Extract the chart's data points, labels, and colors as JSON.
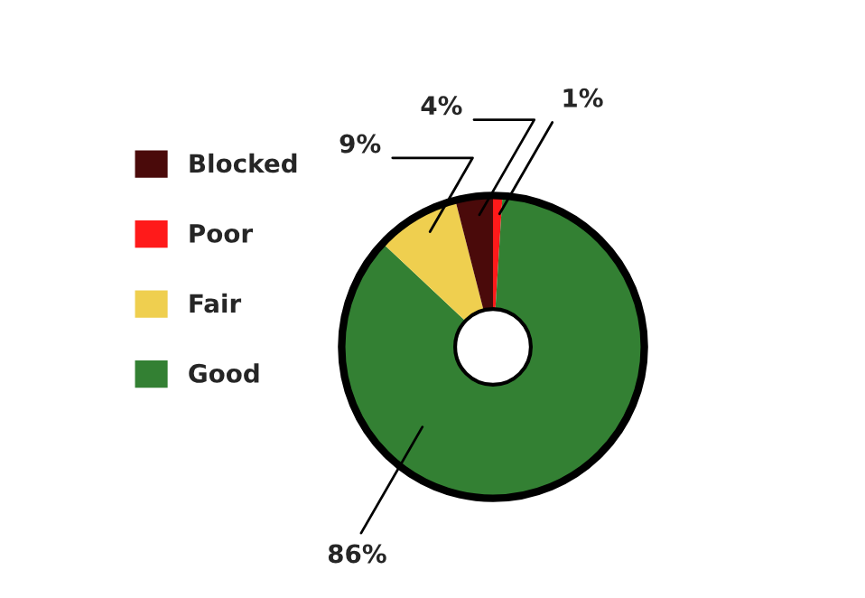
{
  "chart_data": {
    "type": "donut",
    "categories": [
      "Poor",
      "Good",
      "Fair",
      "Blocked"
    ],
    "values": [
      1,
      86,
      9,
      4
    ],
    "colors": [
      "#ff1a1a",
      "#338033",
      "#efcf4f",
      "#4a0a0a"
    ],
    "value_labels": [
      "1%",
      "86%",
      "9%",
      "4%"
    ],
    "legend": "left"
  }
}
